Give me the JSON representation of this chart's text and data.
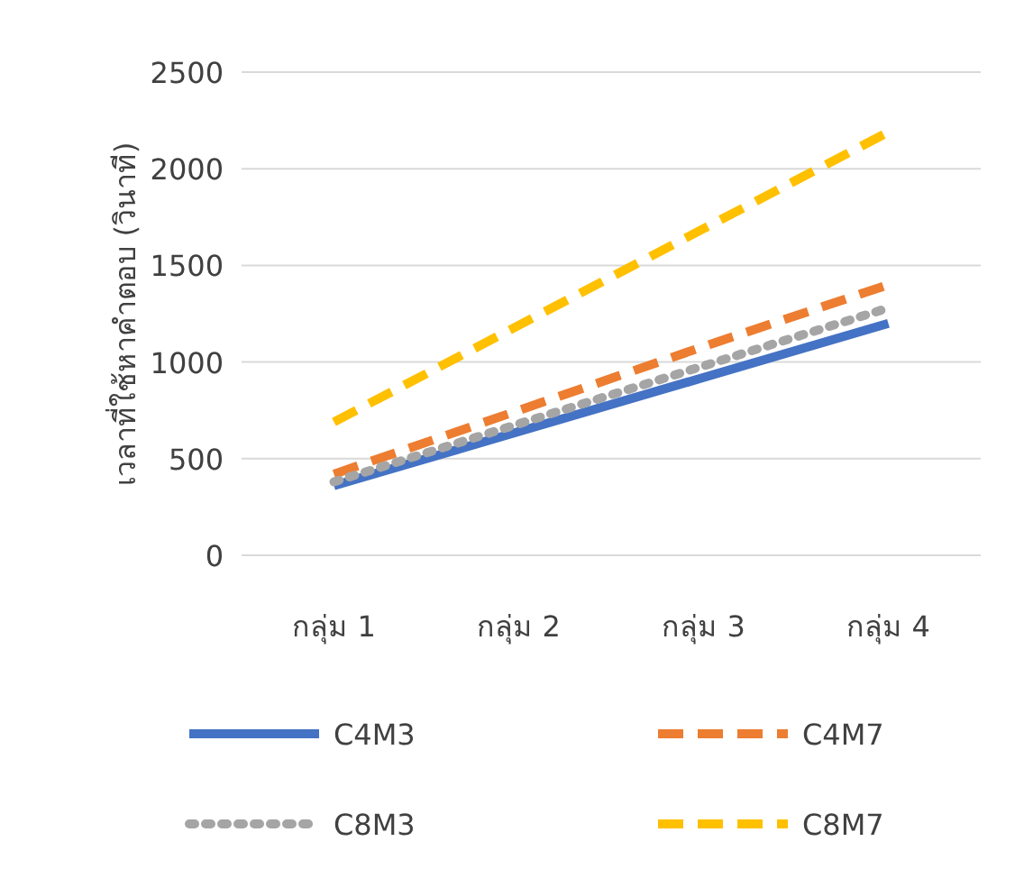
{
  "chart_data": {
    "type": "line",
    "ylabel": "เวลาที่ใช้หาคำตอบ (วินาที)",
    "categories": [
      "กลุ่ม 1",
      "กลุ่ม 2",
      "กลุ่ม 3",
      "กลุ่ม 4"
    ],
    "series": [
      {
        "name": "C4M3",
        "color": "#4472c4",
        "line_style": "solid",
        "values": [
          360,
          640,
          920,
          1200
        ]
      },
      {
        "name": "C4M7",
        "color": "#ed7d31",
        "line_style": "dashed",
        "values": [
          420,
          750,
          1080,
          1400
        ]
      },
      {
        "name": "C8M3",
        "color": "#a5a5a5",
        "line_style": "dotted",
        "values": [
          380,
          680,
          980,
          1280
        ]
      },
      {
        "name": "C8M7",
        "color": "#ffc000",
        "line_style": "dashed",
        "values": [
          690,
          1190,
          1690,
          2190
        ]
      }
    ],
    "ylim": [
      0,
      2500
    ],
    "yticks": [
      0,
      500,
      1000,
      1500,
      2000,
      2500
    ],
    "grid": "y",
    "legend": "bottom",
    "marker": "none"
  }
}
